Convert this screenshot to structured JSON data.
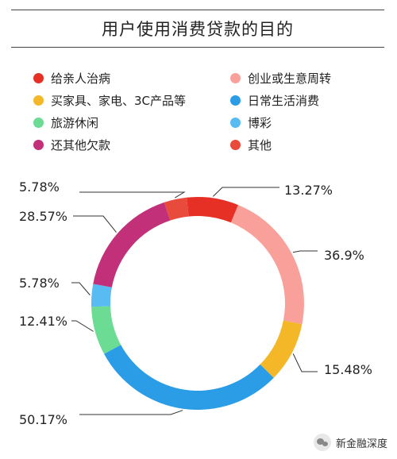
{
  "chart_data": {
    "type": "pie",
    "title": "用户使用消费贷款的目的",
    "donut": true,
    "slices": [
      {
        "label": "给亲人治病",
        "value": 13.27,
        "value_label": "13.27%",
        "color": "#e63026"
      },
      {
        "label": "创业或生意周转",
        "value": 36.9,
        "value_label": "36.9%",
        "color": "#f9a09a"
      },
      {
        "label": "买家具、家电、3C产品等",
        "value": 15.48,
        "value_label": "15.48%",
        "color": "#f3b728"
      },
      {
        "label": "日常生活消费",
        "value": 50.17,
        "value_label": "50.17%",
        "color": "#2b9de6"
      },
      {
        "label": "旅游休闲",
        "value": 12.41,
        "value_label": "12.41%",
        "color": "#6cdb93"
      },
      {
        "label": "博彩",
        "value": 5.78,
        "value_label": "5.78%",
        "color": "#58bbf2"
      },
      {
        "label": "还其他欠款",
        "value": 28.57,
        "value_label": "28.57%",
        "color": "#c2307a"
      },
      {
        "label": "其他",
        "value": 5.78,
        "value_label": "5.78%",
        "color": "#e84a3c"
      }
    ],
    "legend_order": [
      0,
      1,
      2,
      3,
      4,
      5,
      6,
      7
    ],
    "legend_placement": "top"
  },
  "watermark": {
    "text": "新金融深度",
    "icon": "wechat-icon"
  }
}
